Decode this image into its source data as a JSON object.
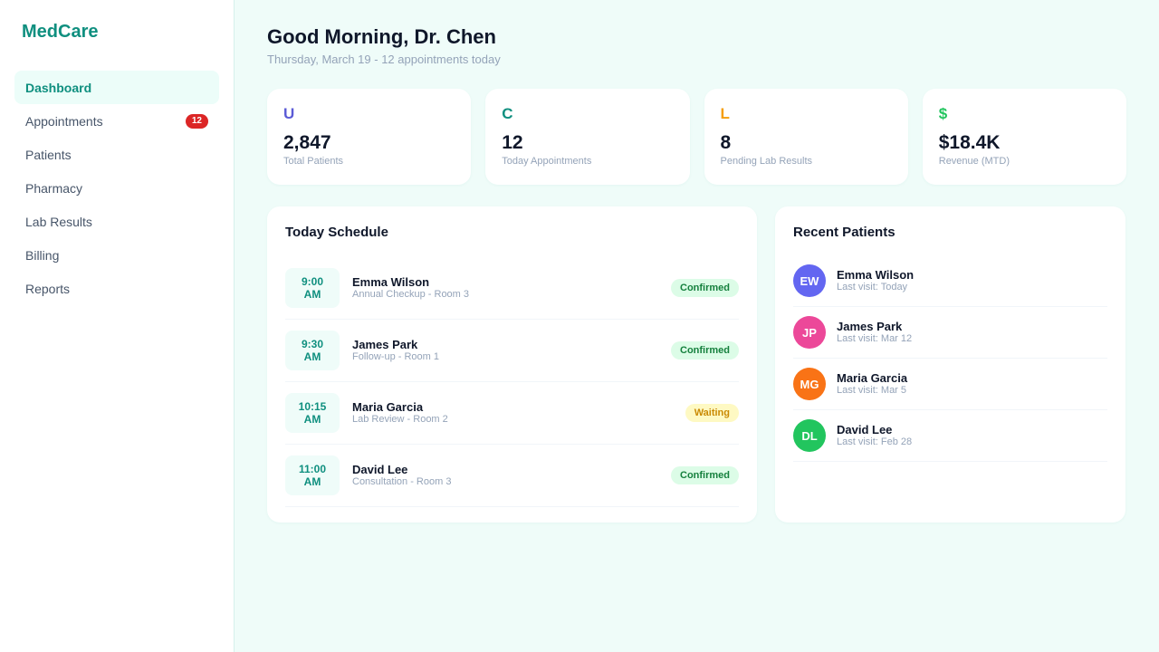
{
  "sidebar": {
    "brand": "MedCare",
    "items": [
      {
        "label": "Dashboard",
        "active": true
      },
      {
        "label": "Appointments",
        "badge": "12"
      },
      {
        "label": "Patients"
      },
      {
        "label": "Pharmacy"
      },
      {
        "label": "Lab Results"
      },
      {
        "label": "Billing"
      },
      {
        "label": "Reports"
      }
    ]
  },
  "header": {
    "greeting": "Good Morning, Dr. Chen",
    "subtitle": "Thursday, March 19 - 12 appointments today"
  },
  "stats": [
    {
      "icon": "U",
      "icon_color": "#5b5bd6",
      "value": "2,847",
      "label": "Total Patients"
    },
    {
      "icon": "C",
      "icon_color": "#0f8f7f",
      "value": "12",
      "label": "Today Appointments"
    },
    {
      "icon": "L",
      "icon_color": "#f59e0b",
      "value": "8",
      "label": "Pending Lab Results"
    },
    {
      "icon": "$",
      "icon_color": "#22c55e",
      "value": "$18.4K",
      "label": "Revenue (MTD)"
    }
  ],
  "schedule": {
    "title": "Today Schedule",
    "items": [
      {
        "time": "9:00",
        "period": "AM",
        "name": "Emma Wilson",
        "desc": "Annual Checkup - Room 3",
        "status": "Confirmed"
      },
      {
        "time": "9:30",
        "period": "AM",
        "name": "James Park",
        "desc": "Follow-up - Room 1",
        "status": "Confirmed"
      },
      {
        "time": "10:15",
        "period": "AM",
        "name": "Maria Garcia",
        "desc": "Lab Review - Room 2",
        "status": "Waiting"
      },
      {
        "time": "11:00",
        "period": "AM",
        "name": "David Lee",
        "desc": "Consultation - Room 3",
        "status": "Confirmed"
      }
    ]
  },
  "recent": {
    "title": "Recent Patients",
    "items": [
      {
        "initials": "EW",
        "color": "#6366f1",
        "name": "Emma Wilson",
        "visit": "Last visit: Today"
      },
      {
        "initials": "JP",
        "color": "#ec4899",
        "name": "James Park",
        "visit": "Last visit: Mar 12"
      },
      {
        "initials": "MG",
        "color": "#f97316",
        "name": "Maria Garcia",
        "visit": "Last visit: Mar 5"
      },
      {
        "initials": "DL",
        "color": "#22c55e",
        "name": "David Lee",
        "visit": "Last visit: Feb 28"
      }
    ]
  },
  "colors": {
    "accent": "#0f8f7f",
    "badge_red": "#dc2626",
    "confirmed_bg": "#dcfce7",
    "confirmed_text": "#15803d",
    "waiting_bg": "#fef9c3",
    "waiting_text": "#ca8a04"
  }
}
